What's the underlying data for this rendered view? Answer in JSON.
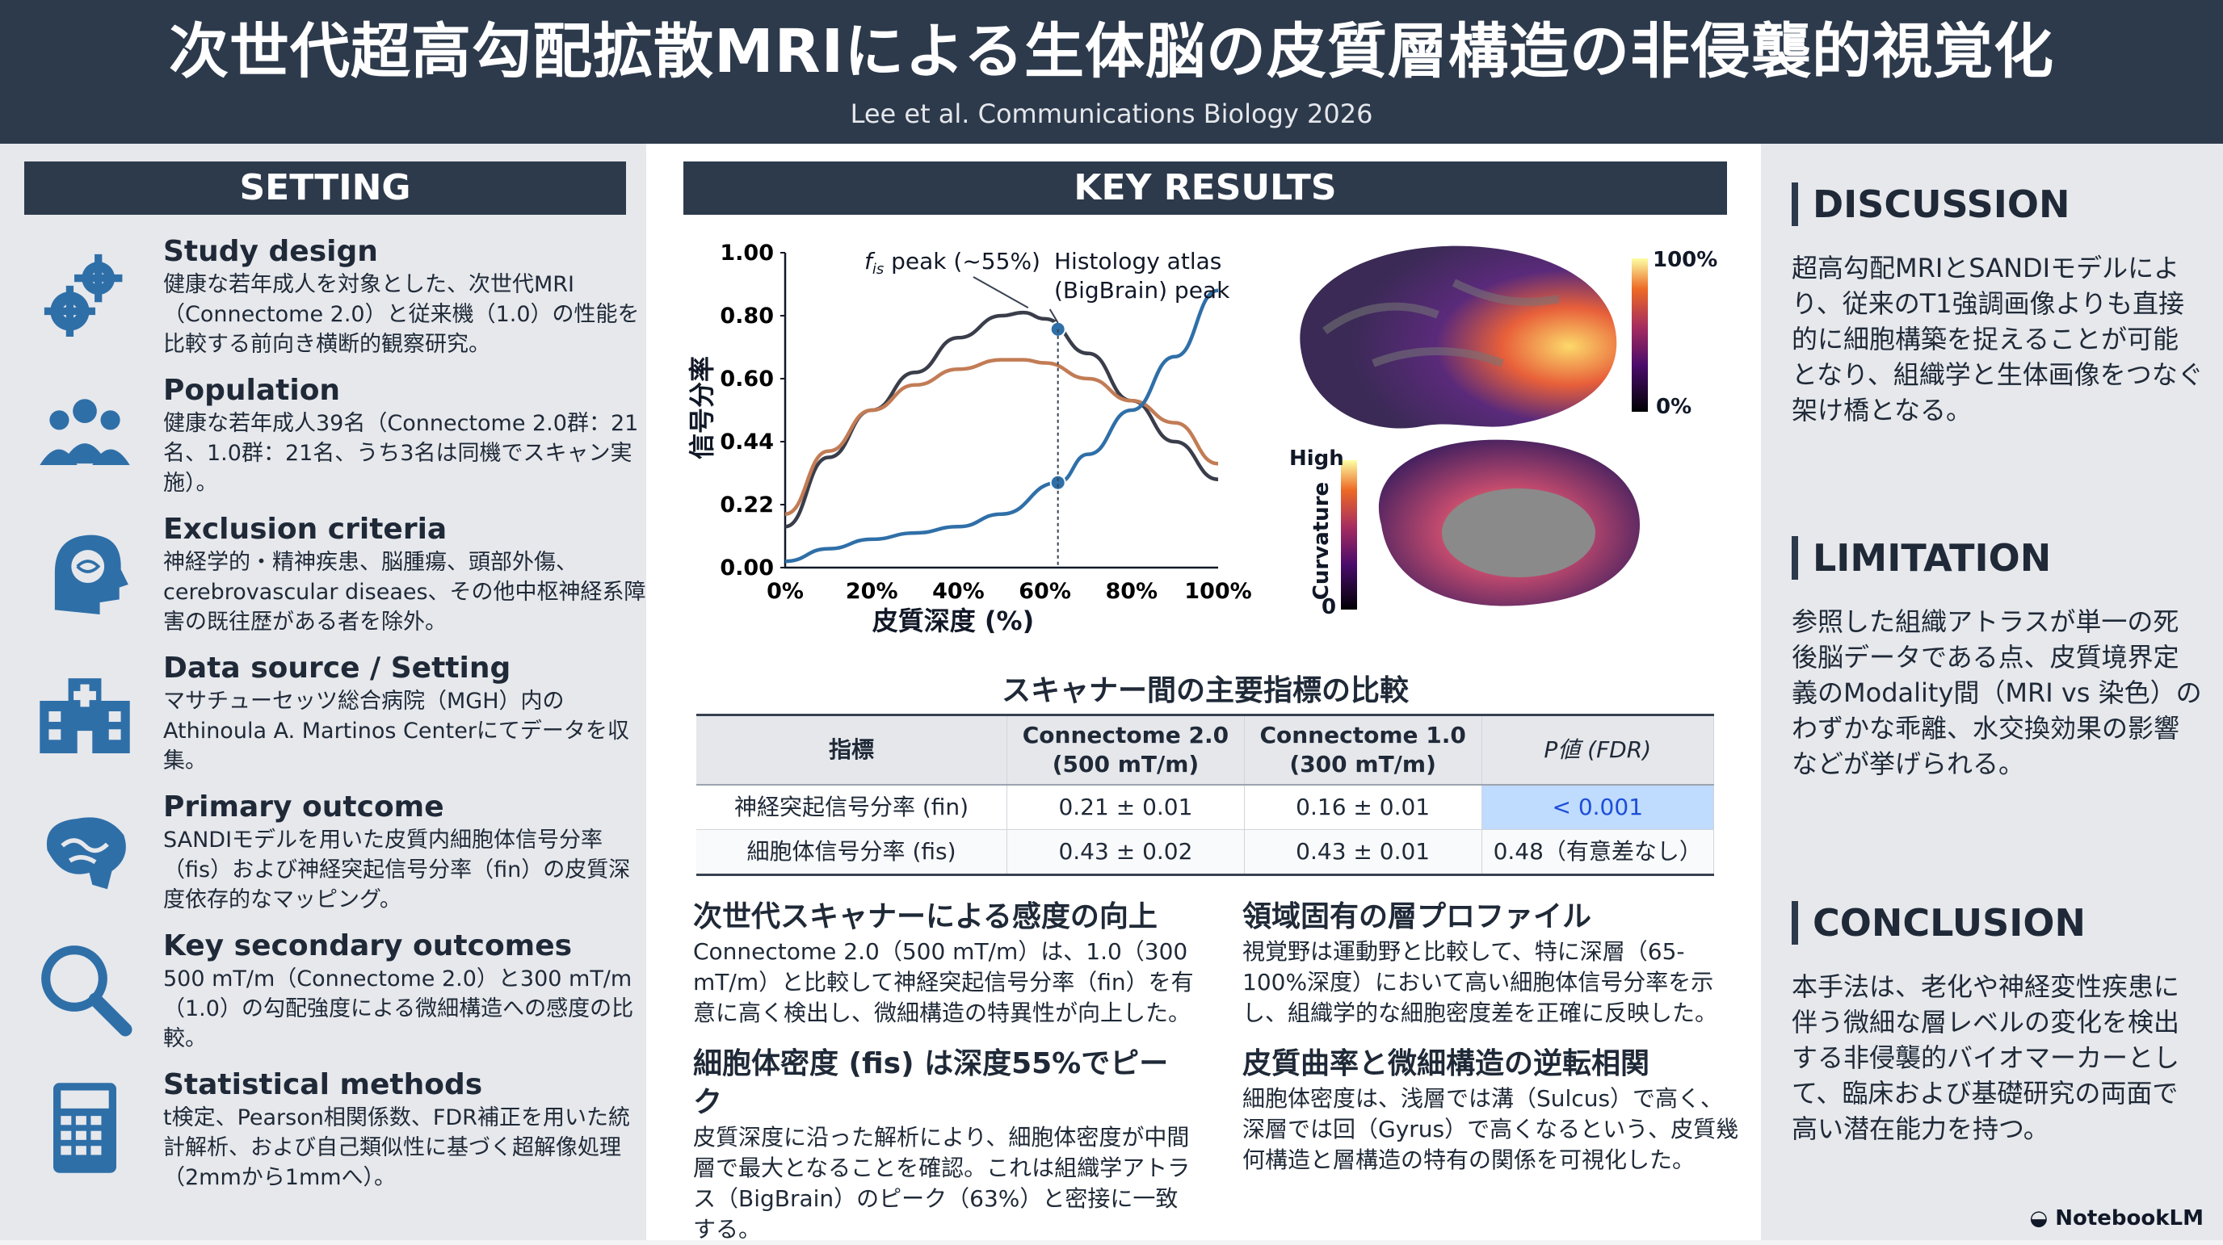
{
  "header": {
    "title": "次世代超高勾配拡散MRIによる生体脳の皮質層構造の非侵襲的視覚化",
    "citation": "Lee et al. Communications Biology 2026"
  },
  "setting": {
    "heading": "SETTING",
    "items": [
      {
        "icon": "gears-icon",
        "title": "Study design",
        "body": "健康な若年成人を対象とした、次世代MRI（Connectome 2.0）と従来機（1.0）の性能を比較する前向き横断的観察研究。"
      },
      {
        "icon": "people-group-icon",
        "title": "Population",
        "body": "健康な若年成人39名（Connectome 2.0群：21名、1.0群：21名、うち3名は同機でスキャン実施）。"
      },
      {
        "icon": "head-brain-icon",
        "title": "Exclusion criteria",
        "body": "神経学的・精神疾患、脳腫瘍、頭部外傷、cerebrovascular diseaes、その他中枢神経系障害の既往歴がある者を除外。"
      },
      {
        "icon": "hospital-icon",
        "title": "Data source / Setting",
        "body": "マサチューセッツ総合病院（MGH）内のAthinoula A. Martinos Centerにてデータを収集。"
      },
      {
        "icon": "brain-icon",
        "title": "Primary outcome",
        "body": "SANDIモデルを用いた皮質内細胞体信号分率（fis）および神経突起信号分率（fin）の皮質深度依存的なマッピング。"
      },
      {
        "icon": "magnifier-icon",
        "title": "Key secondary outcomes",
        "body": "500 mT/m（Connectome 2.0）と300 mT/m（1.0）の勾配強度による微細構造への感度の比較。"
      },
      {
        "icon": "calculator-icon",
        "title": "Statistical methods",
        "body": "t検定、Pearson相関係数、FDR補正を用いた統計解析、および自己類似性に基づく超解像処理（2mmから1mmへ）。"
      }
    ]
  },
  "key_results": {
    "heading": "KEY RESULTS",
    "chart_data": {
      "type": "line",
      "xlabel": "皮質深度 (%)",
      "ylabel": "信号分率",
      "x_ticks": [
        "0%",
        "20%",
        "40%",
        "60%",
        "80%",
        "100%"
      ],
      "y_ticks": [
        "0.00",
        "0.22",
        "0.44",
        "0.60",
        "0.80",
        "1.00"
      ],
      "xlim": [
        0,
        100
      ],
      "ylim": [
        0,
        1
      ],
      "series": [
        {
          "color": "#3a3d4a",
          "x": [
            0,
            10,
            20,
            30,
            40,
            50,
            55,
            60,
            70,
            80,
            90,
            100
          ],
          "y": [
            0.13,
            0.35,
            0.5,
            0.62,
            0.73,
            0.8,
            0.81,
            0.79,
            0.68,
            0.53,
            0.4,
            0.28
          ]
        },
        {
          "color": "#c27c55",
          "x": [
            0,
            10,
            20,
            30,
            40,
            50,
            55,
            60,
            70,
            80,
            90,
            100
          ],
          "y": [
            0.17,
            0.37,
            0.5,
            0.58,
            0.63,
            0.66,
            0.66,
            0.65,
            0.6,
            0.53,
            0.46,
            0.33
          ]
        },
        {
          "color": "#2f6fa8",
          "x": [
            0,
            10,
            20,
            30,
            40,
            50,
            63,
            70,
            80,
            90,
            100
          ],
          "y": [
            0.02,
            0.06,
            0.09,
            0.11,
            0.13,
            0.17,
            0.27,
            0.36,
            0.5,
            0.67,
            0.88
          ]
        }
      ],
      "annotations": {
        "peak_label_prefix": "f",
        "peak_label_sub": "is",
        "peak_label_suffix": " peak (~55%)",
        "histology_line1": "Histology atlas",
        "histology_line2": "(BigBrain) peak",
        "marker_x": 63
      }
    },
    "brain_maps": {
      "lateral_scale_top": "100%",
      "lateral_scale_bottom": "0%",
      "curvature_label": "Curvature",
      "curvature_top": "High",
      "curvature_bottom": "0"
    },
    "table": {
      "title": "スキャナー間の主要指標の比較",
      "headers": [
        "指標",
        "Connectome 2.0 (500 mT/m)",
        "Connectome 1.0 (300 mT/m)",
        "P値 (FDR)"
      ],
      "rows": [
        [
          "神経突起信号分率 (fin)",
          "0.21 ± 0.01",
          "0.16 ± 0.01",
          "< 0.001"
        ],
        [
          "細胞体信号分率 (fis)",
          "0.43 ± 0.02",
          "0.43 ± 0.01",
          "0.48（有意差なし）"
        ]
      ]
    },
    "findings": [
      {
        "title": "次世代スキャナーによる感度の向上",
        "body": "Connectome 2.0（500 mT/m）は、1.0（300 mT/m）と比較して神経突起信号分率（fin）を有意に高く検出し、微細構造の特異性が向上した。"
      },
      {
        "title": "領域固有の層プロファイル",
        "body": "視覚野は運動野と比較して、特に深層（65-100%深度）において高い細胞体信号分率を示し、組織学的な細胞密度差を正確に反映した。"
      },
      {
        "title": "細胞体密度 (fis) は深度55%でピーク",
        "body": "皮質深度に沿った解析により、細胞体密度が中間層で最大となることを確認。これは組織学アトラス（BigBrain）のピーク（63%）と密接に一致する。"
      },
      {
        "title": "皮質曲率と微細構造の逆転相関",
        "body": "細胞体密度は、浅層では溝（Sulcus）で高く、深層では回（Gyrus）で高くなるという、皮質幾何構造と層構造の特有の関係を可視化した。"
      }
    ]
  },
  "discussion": {
    "heading": "DISCUSSION",
    "body": "超高勾配MRIとSANDIモデルにより、従来のT1強調画像よりも直接的に細胞構築を捉えることが可能となり、組織学と生体画像をつなぐ架け橋となる。"
  },
  "limitation": {
    "heading": "LIMITATION",
    "body": "参照した組織アトラスが単一の死後脳データである点、皮質境界定義のModality間（MRI vs 染色）のわずかな乖離、水交換効果の影響などが挙げられる。"
  },
  "conclusion": {
    "heading": "CONCLUSION",
    "body": "本手法は、老化や神経変性疾患に伴う微細な層レベルの変化を検出する非侵襲的バイオマーカーとして、臨床および基礎研究の両面で高い潜在能力を持つ。"
  },
  "footer": {
    "logo": "NotebookLM"
  },
  "colors": {
    "navy": "#2d3a4c",
    "icon_blue": "#2f6fa8",
    "highlight": "#bfdbfe"
  }
}
